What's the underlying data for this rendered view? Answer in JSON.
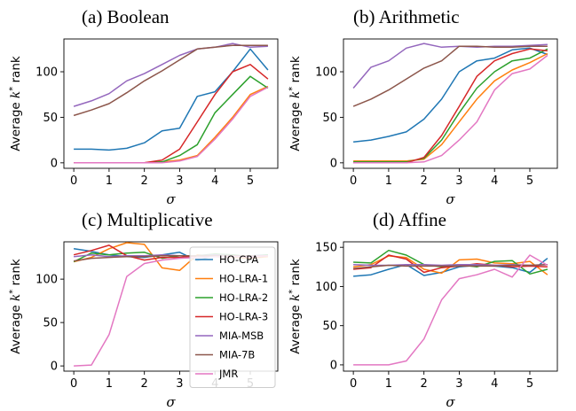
{
  "chart_data": [
    {
      "type": "line",
      "title": "(a) Boolean",
      "xlabel": "σ",
      "ylabel": "Average k* rank",
      "xlim": [
        -0.28,
        5.78
      ],
      "ylim": [
        -6,
        136
      ],
      "xticks": [
        "0",
        "1",
        "2",
        "3",
        "4",
        "5"
      ],
      "yticks": [
        "0",
        "50",
        "100"
      ],
      "x": [
        0,
        0.5,
        1,
        1.5,
        2,
        2.5,
        3,
        3.5,
        4,
        4.5,
        5,
        5.5
      ],
      "series": [
        {
          "name": "HO-CPA",
          "color": "#1f77b4",
          "values": [
            15,
            15,
            14,
            16,
            22,
            35,
            38,
            73,
            78,
            100,
            125,
            102
          ]
        },
        {
          "name": "HO-LRA-1",
          "color": "#ff7f0e",
          "values": [
            0,
            0,
            0,
            0,
            0,
            1,
            3,
            8,
            28,
            50,
            75,
            84
          ]
        },
        {
          "name": "HO-LRA-2",
          "color": "#2ca02c",
          "values": [
            0,
            0,
            0,
            0,
            0,
            1,
            8,
            20,
            55,
            75,
            95,
            82
          ]
        },
        {
          "name": "HO-LRA-3",
          "color": "#d62728",
          "values": [
            0,
            0,
            0,
            0,
            0,
            3,
            15,
            45,
            75,
            100,
            108,
            92
          ]
        },
        {
          "name": "MIA-MSB",
          "color": "#9467bd",
          "values": [
            62,
            68,
            76,
            90,
            98,
            108,
            118,
            125,
            127,
            131,
            127,
            128
          ]
        },
        {
          "name": "MIA-7B",
          "color": "#8c564b",
          "values": [
            52,
            58,
            65,
            77,
            90,
            101,
            113,
            125,
            127,
            129,
            129,
            129
          ]
        },
        {
          "name": "JMR",
          "color": "#e377c2",
          "values": [
            0,
            0,
            0,
            0,
            0,
            0,
            2,
            7,
            26,
            48,
            73,
            83
          ]
        }
      ]
    },
    {
      "type": "line",
      "title": "(b) Arithmetic",
      "xlabel": "σ",
      "ylabel": "Average k* rank",
      "xlim": [
        -0.28,
        5.78
      ],
      "ylim": [
        -6,
        136
      ],
      "xticks": [
        "0",
        "1",
        "2",
        "3",
        "4",
        "5"
      ],
      "yticks": [
        "0",
        "50",
        "100"
      ],
      "x": [
        0,
        0.5,
        1,
        1.5,
        2,
        2.5,
        3,
        3.5,
        4,
        4.5,
        5,
        5.5
      ],
      "series": [
        {
          "name": "HO-CPA",
          "color": "#1f77b4",
          "values": [
            23,
            25,
            29,
            34,
            48,
            70,
            100,
            112,
            115,
            124,
            126,
            119
          ]
        },
        {
          "name": "HO-LRA-1",
          "color": "#ff7f0e",
          "values": [
            2,
            2,
            2,
            2,
            4,
            20,
            45,
            70,
            90,
            102,
            110,
            120
          ]
        },
        {
          "name": "HO-LRA-2",
          "color": "#2ca02c",
          "values": [
            1,
            1,
            1,
            1,
            5,
            25,
            55,
            82,
            100,
            112,
            115,
            125
          ]
        },
        {
          "name": "HO-LRA-3",
          "color": "#d62728",
          "values": [
            0,
            0,
            0,
            0,
            6,
            30,
            62,
            95,
            112,
            120,
            125,
            123
          ]
        },
        {
          "name": "MIA-MSB",
          "color": "#9467bd",
          "values": [
            82,
            105,
            112,
            126,
            131,
            127,
            128,
            127,
            128,
            128,
            129,
            130
          ]
        },
        {
          "name": "MIA-7B",
          "color": "#8c564b",
          "values": [
            62,
            70,
            80,
            92,
            104,
            112,
            128,
            128,
            127,
            127,
            128,
            128
          ]
        },
        {
          "name": "JMR",
          "color": "#e377c2",
          "values": [
            0,
            0,
            0,
            0,
            1,
            8,
            25,
            45,
            80,
            98,
            103,
            118
          ]
        }
      ]
    },
    {
      "type": "line",
      "title": "(c) Multiplicative",
      "xlabel": "σ",
      "ylabel": "Average k* rank",
      "xlim": [
        -0.28,
        5.78
      ],
      "ylim": [
        -6,
        143
      ],
      "xticks": [
        "0",
        "1",
        "2",
        "3",
        "4",
        "5"
      ],
      "yticks": [
        "0",
        "50",
        "100"
      ],
      "x": [
        0,
        0.5,
        1,
        1.5,
        2,
        2.5,
        3,
        3.5,
        4,
        4.5,
        5,
        5.5
      ],
      "series": [
        {
          "name": "HO-CPA",
          "color": "#1f77b4",
          "values": [
            135,
            132,
            128,
            126,
            125,
            128,
            131,
            121,
            128,
            126,
            127,
            128
          ]
        },
        {
          "name": "HO-LRA-1",
          "color": "#ff7f0e",
          "values": [
            120,
            125,
            135,
            142,
            140,
            113,
            110,
            128,
            126,
            125,
            124,
            126
          ]
        },
        {
          "name": "HO-LRA-2",
          "color": "#2ca02c",
          "values": [
            120,
            130,
            128,
            130,
            131,
            124,
            127,
            127,
            129,
            128,
            126,
            128
          ]
        },
        {
          "name": "HO-LRA-3",
          "color": "#d62728",
          "values": [
            128,
            133,
            139,
            127,
            122,
            125,
            125,
            127,
            126,
            127,
            125,
            127
          ]
        },
        {
          "name": "MIA-MSB",
          "color": "#9467bd",
          "values": [
            126,
            128,
            126,
            127,
            127,
            128,
            127,
            127,
            128,
            127,
            127,
            127
          ]
        },
        {
          "name": "MIA-7B",
          "color": "#8c564b",
          "values": [
            121,
            124,
            125,
            126,
            126,
            127,
            127,
            127,
            127,
            127,
            127,
            127
          ]
        },
        {
          "name": "JMR",
          "color": "#e377c2",
          "values": [
            0,
            1,
            36,
            103,
            118,
            122,
            124,
            125,
            126,
            126,
            126,
            127
          ]
        }
      ]
    },
    {
      "type": "line",
      "title": "(d) Affine",
      "xlabel": "σ",
      "ylabel": "Average k* rank",
      "xlim": [
        -0.28,
        5.78
      ],
      "ylim": [
        -8,
        157
      ],
      "xticks": [
        "0",
        "1",
        "2",
        "3",
        "4",
        "5"
      ],
      "yticks": [
        "0",
        "50",
        "100",
        "150"
      ],
      "x": [
        0,
        0.5,
        1,
        1.5,
        2,
        2.5,
        3,
        3.5,
        4,
        4.5,
        5,
        5.5
      ],
      "series": [
        {
          "name": "HO-CPA",
          "color": "#1f77b4",
          "values": [
            113,
            115,
            122,
            128,
            114,
            118,
            125,
            127,
            126,
            124,
            118,
            136
          ]
        },
        {
          "name": "HO-LRA-1",
          "color": "#ff7f0e",
          "values": [
            125,
            128,
            139,
            137,
            122,
            117,
            134,
            135,
            130,
            129,
            132,
            115
          ]
        },
        {
          "name": "HO-LRA-2",
          "color": "#2ca02c",
          "values": [
            131,
            130,
            146,
            140,
            128,
            125,
            128,
            125,
            132,
            133,
            116,
            122
          ]
        },
        {
          "name": "HO-LRA-3",
          "color": "#d62728",
          "values": [
            122,
            124,
            140,
            135,
            118,
            124,
            126,
            129,
            127,
            125,
            126,
            125
          ]
        },
        {
          "name": "MIA-MSB",
          "color": "#9467bd",
          "values": [
            128,
            127,
            127,
            128,
            128,
            127,
            128,
            128,
            127,
            128,
            127,
            128
          ]
        },
        {
          "name": "MIA-7B",
          "color": "#8c564b",
          "values": [
            123,
            125,
            127,
            126,
            126,
            126,
            126,
            126,
            126,
            127,
            127,
            128
          ]
        },
        {
          "name": "JMR",
          "color": "#e377c2",
          "values": [
            0,
            0,
            0,
            5,
            33,
            83,
            110,
            115,
            122,
            112,
            140,
            127
          ]
        }
      ]
    }
  ],
  "legend": {
    "placement": "top-right",
    "entries": [
      "HO-CPA",
      "HO-LRA-1",
      "HO-LRA-2",
      "HO-LRA-3",
      "MIA-MSB",
      "MIA-7B",
      "JMR"
    ]
  }
}
